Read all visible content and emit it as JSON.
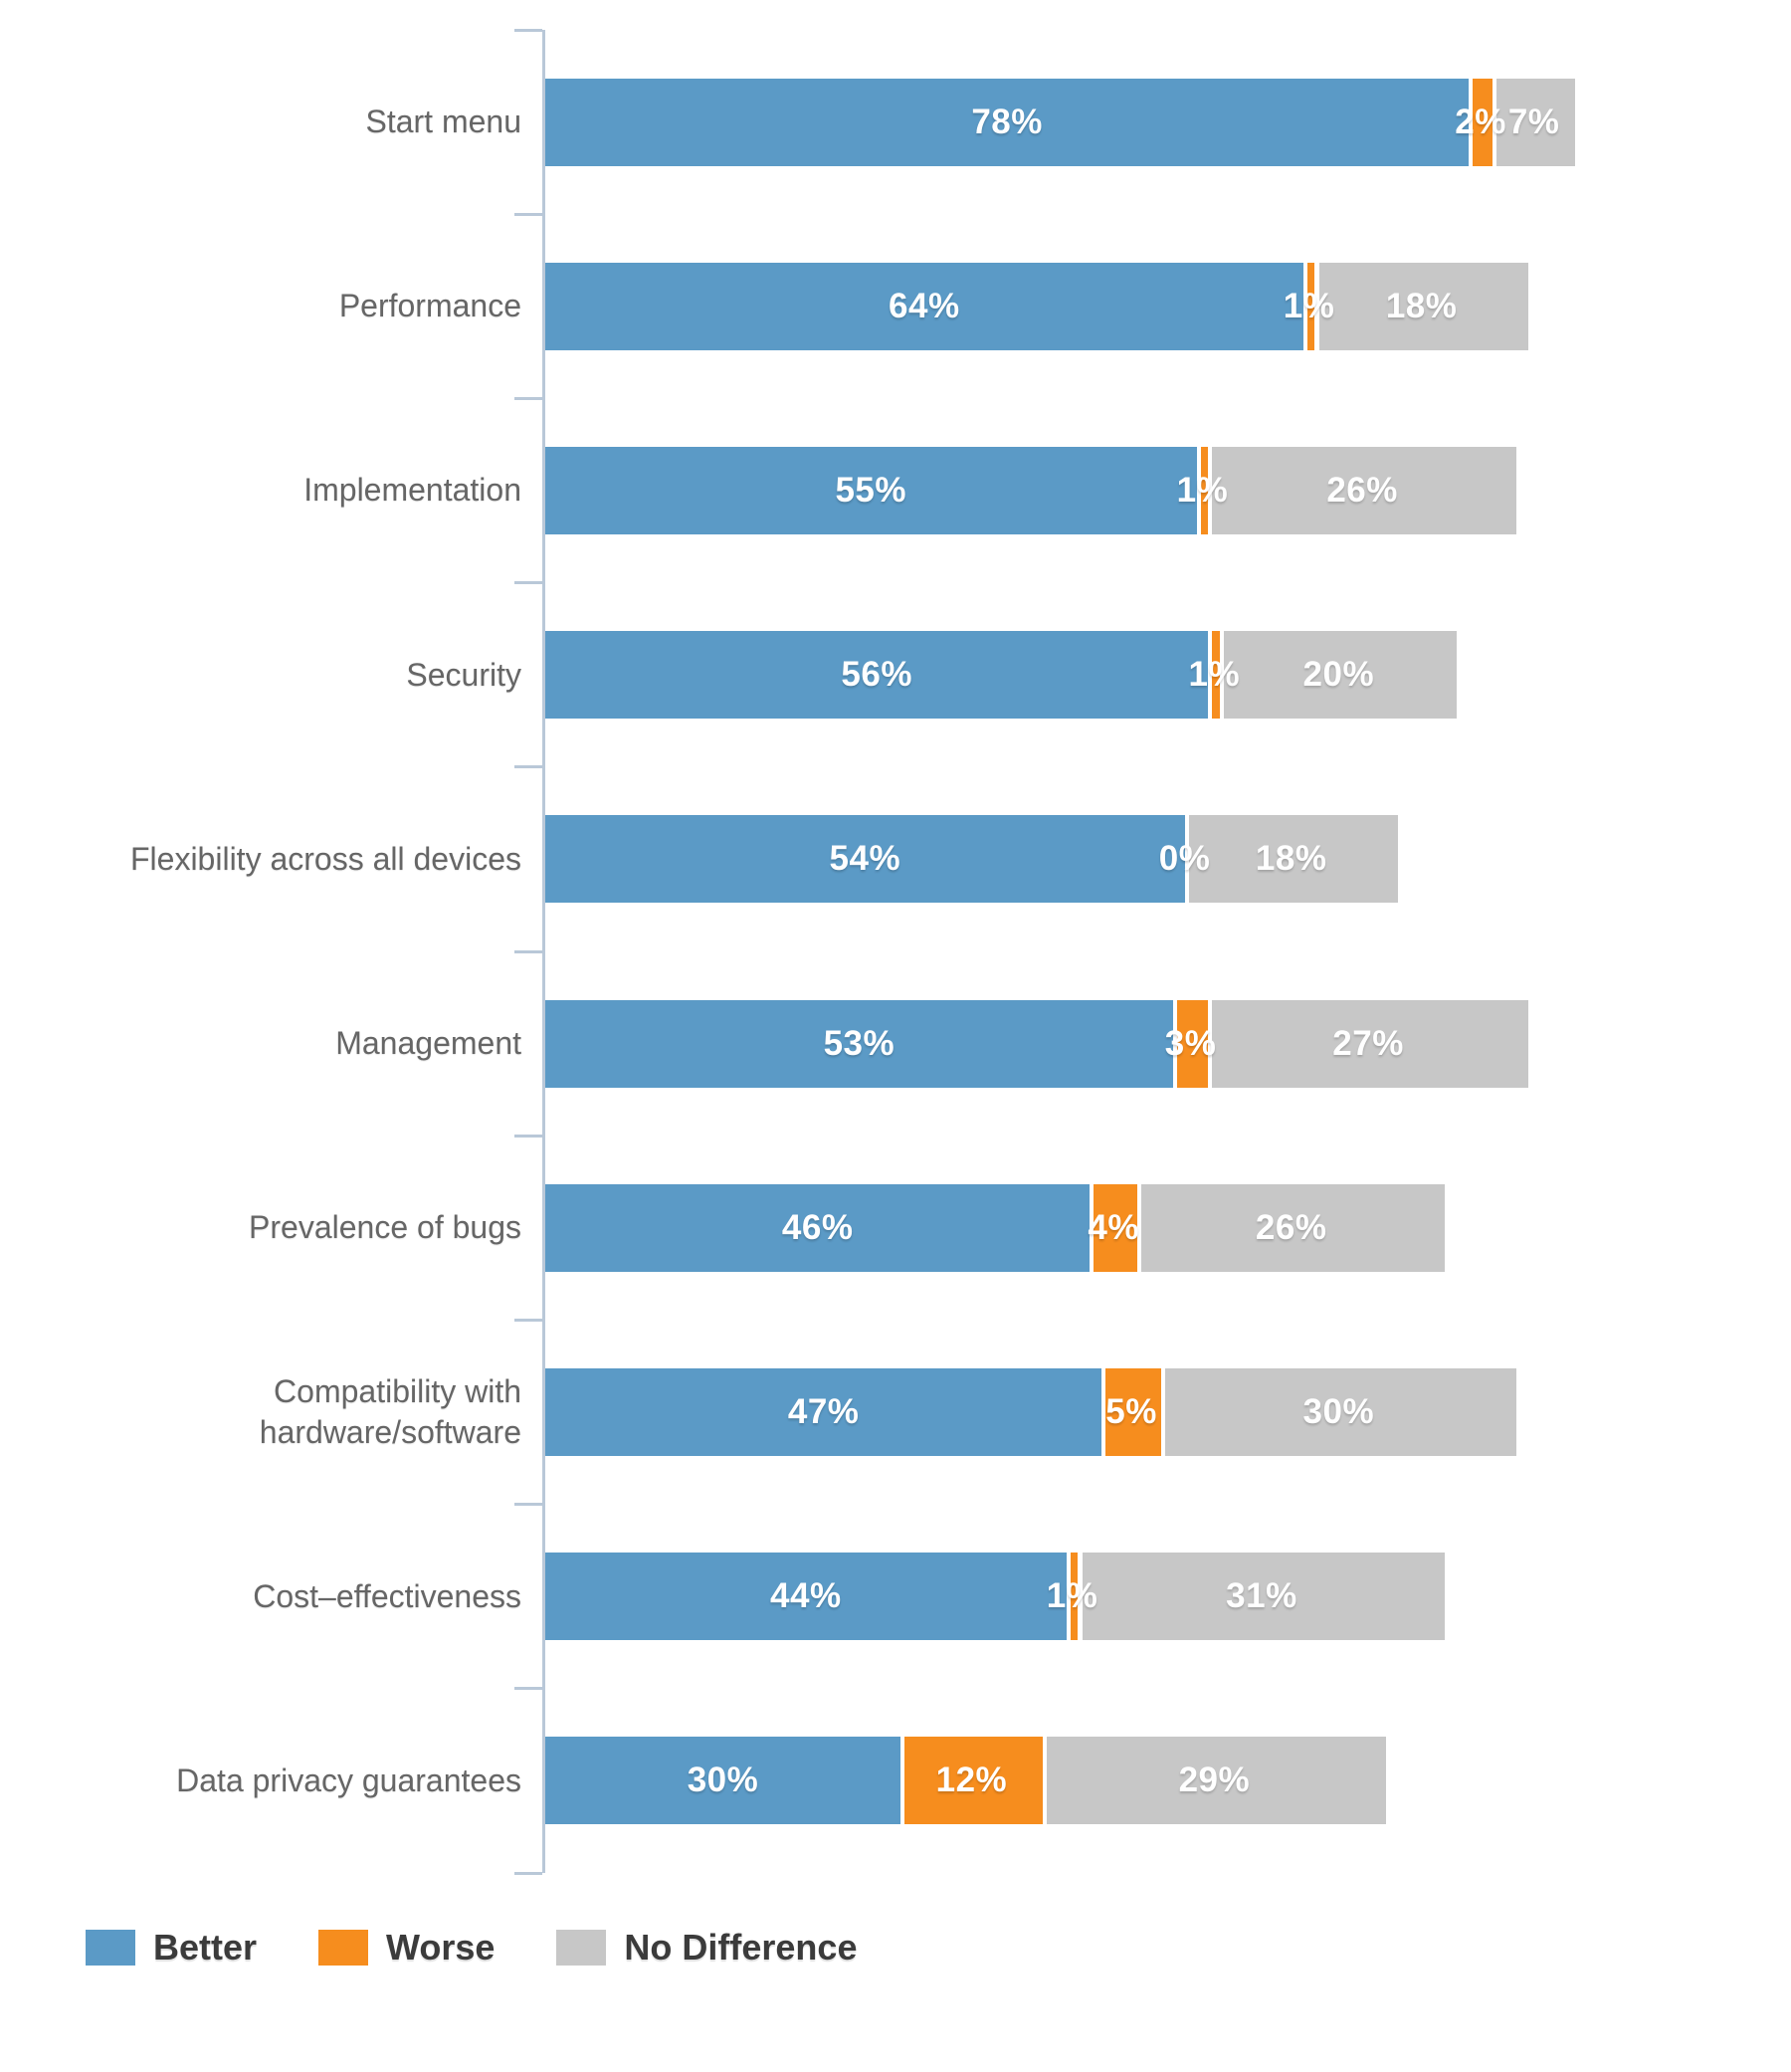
{
  "chart_data": {
    "type": "bar",
    "orientation": "horizontal",
    "stacked": true,
    "title": "",
    "xlabel": "",
    "ylabel": "",
    "unit": "%",
    "xlim": [
      0,
      100
    ],
    "grid": false,
    "legend_position": "bottom-left",
    "value_labels": "inside segments, white, percent suffix",
    "categories": [
      "Start menu",
      "Performance",
      "Implementation",
      "Security",
      "Flexibility across all devices",
      "Management",
      "Prevalence of bugs",
      "Compatibility with\nhardware/software",
      "Cost–effectiveness",
      "Data privacy guarantees"
    ],
    "series": [
      {
        "name": "Better",
        "color": "#5b9ac6",
        "values": [
          78,
          64,
          55,
          56,
          54,
          53,
          46,
          47,
          44,
          30
        ]
      },
      {
        "name": "Worse",
        "color": "#f68d1e",
        "values": [
          2,
          1,
          1,
          1,
          0,
          3,
          4,
          5,
          1,
          12
        ]
      },
      {
        "name": "No Difference",
        "color": "#c7c7c7",
        "values": [
          7,
          18,
          26,
          20,
          18,
          27,
          26,
          30,
          31,
          29
        ]
      }
    ]
  },
  "style": {
    "axis_color": "#b9c8d8",
    "category_label_color": "#666666",
    "value_label_color": "#ffffff",
    "legend_text_color": "#3b3b3b",
    "background_color": "#ffffff"
  }
}
